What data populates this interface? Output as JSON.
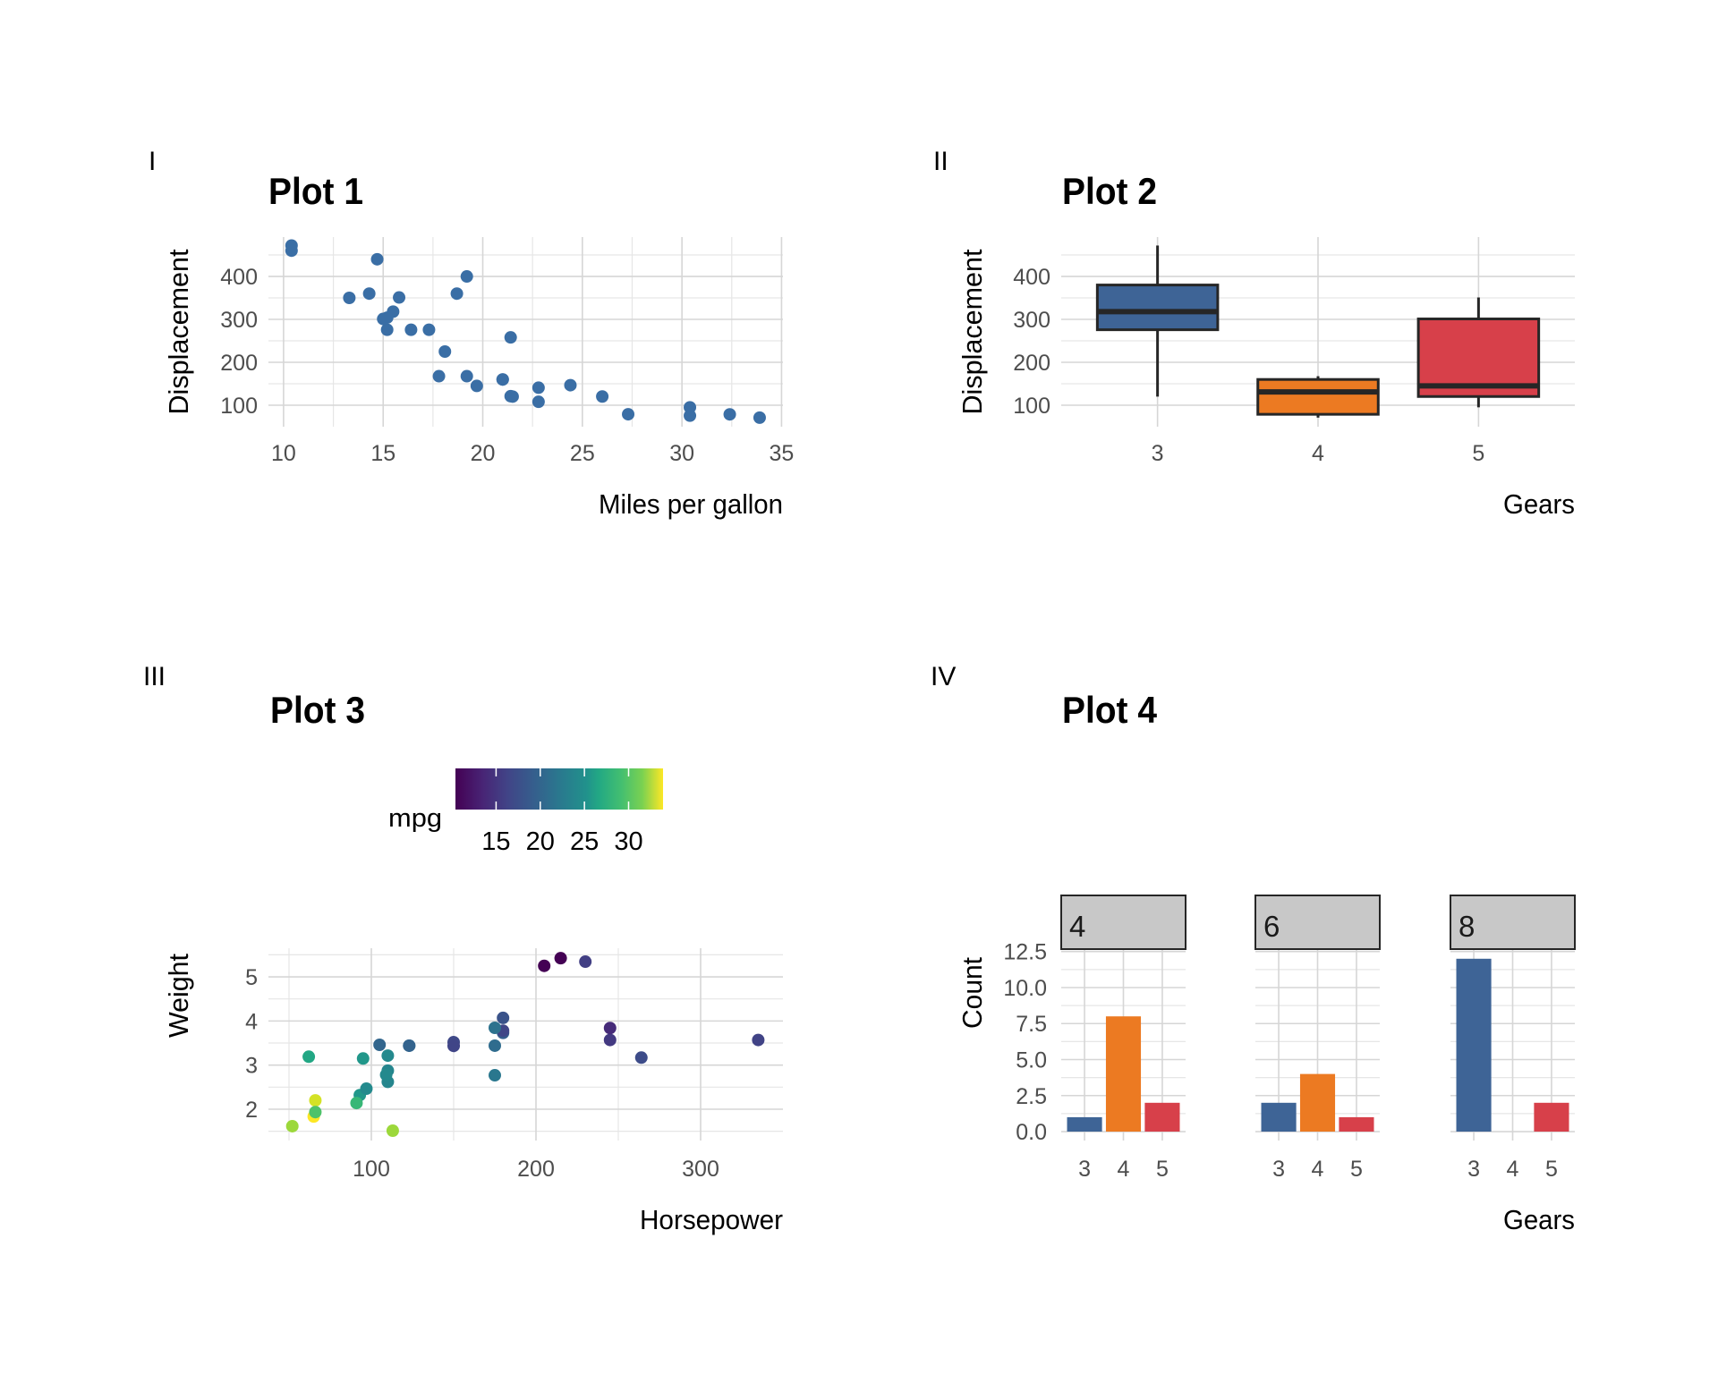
{
  "figure": {
    "panels": [
      {
        "tag": "I",
        "title": "Plot 1"
      },
      {
        "tag": "II",
        "title": "Plot 2"
      },
      {
        "tag": "III",
        "title": "Plot 3"
      },
      {
        "tag": "IV",
        "title": "Plot 4"
      }
    ]
  },
  "chart_data": [
    {
      "type": "scatter",
      "tag": "I",
      "title": "Plot 1",
      "xlabel": "Miles per gallon",
      "ylabel": "Displacement",
      "xlim": [
        9.24,
        35.07
      ],
      "ylim": [
        50,
        491.7
      ],
      "xticks": [
        10,
        15,
        20,
        25,
        30,
        35
      ],
      "yticks": [
        100,
        200,
        300,
        400
      ],
      "grid": true,
      "point_color": "#3a6ea5",
      "points": [
        {
          "x": 21.0,
          "y": 160
        },
        {
          "x": 21.0,
          "y": 160
        },
        {
          "x": 22.8,
          "y": 108
        },
        {
          "x": 21.4,
          "y": 258
        },
        {
          "x": 18.7,
          "y": 360
        },
        {
          "x": 18.1,
          "y": 225
        },
        {
          "x": 14.3,
          "y": 360
        },
        {
          "x": 24.4,
          "y": 146.7
        },
        {
          "x": 22.8,
          "y": 140.8
        },
        {
          "x": 19.2,
          "y": 167.6
        },
        {
          "x": 17.8,
          "y": 167.6
        },
        {
          "x": 16.4,
          "y": 275.8
        },
        {
          "x": 17.3,
          "y": 275.8
        },
        {
          "x": 15.2,
          "y": 275.8
        },
        {
          "x": 10.4,
          "y": 472
        },
        {
          "x": 10.4,
          "y": 460
        },
        {
          "x": 14.7,
          "y": 440
        },
        {
          "x": 32.4,
          "y": 78.7
        },
        {
          "x": 30.4,
          "y": 75.7
        },
        {
          "x": 33.9,
          "y": 71.1
        },
        {
          "x": 21.5,
          "y": 120.1
        },
        {
          "x": 15.5,
          "y": 318
        },
        {
          "x": 15.2,
          "y": 304
        },
        {
          "x": 13.3,
          "y": 350
        },
        {
          "x": 19.2,
          "y": 400
        },
        {
          "x": 27.3,
          "y": 79
        },
        {
          "x": 26.0,
          "y": 120.3
        },
        {
          "x": 30.4,
          "y": 95.1
        },
        {
          "x": 15.8,
          "y": 351
        },
        {
          "x": 19.7,
          "y": 145
        },
        {
          "x": 15.0,
          "y": 301
        },
        {
          "x": 21.4,
          "y": 121
        }
      ]
    },
    {
      "type": "box",
      "tag": "II",
      "title": "Plot 2",
      "xlabel": "Gears",
      "ylabel": "Displacement",
      "ylim": [
        50,
        491.7
      ],
      "yticks": [
        100,
        200,
        300,
        400
      ],
      "categories": [
        "3",
        "4",
        "5"
      ],
      "grid": true,
      "boxes": [
        {
          "category": "3",
          "lower": 120.1,
          "q1": 275.8,
          "median": 318,
          "q3": 380,
          "upper": 472,
          "color": "#3e6496"
        },
        {
          "category": "4",
          "lower": 71.1,
          "q1": 78.85,
          "median": 130.9,
          "q3": 160,
          "upper": 167.6,
          "color": "#ec7a22"
        },
        {
          "category": "5",
          "lower": 95.1,
          "q1": 120.3,
          "median": 145,
          "q3": 301,
          "upper": 351,
          "color": "#d7404a"
        }
      ]
    },
    {
      "type": "scatter",
      "tag": "III",
      "title": "Plot 3",
      "xlabel": "Horsepower",
      "ylabel": "Weight",
      "xlim": [
        37.5,
        350
      ],
      "ylim": [
        1.29,
        5.65
      ],
      "xticks": [
        100,
        200,
        300
      ],
      "yticks": [
        2,
        3,
        4,
        5
      ],
      "grid": true,
      "color_by": "mpg",
      "legend": {
        "title": "mpg",
        "position": "top",
        "ticks": [
          15,
          20,
          25,
          30
        ],
        "range": [
          10.4,
          33.9
        ],
        "palette": "viridis"
      },
      "points": [
        {
          "x": 110,
          "y": 2.62,
          "mpg": 21.0
        },
        {
          "x": 110,
          "y": 2.875,
          "mpg": 21.0
        },
        {
          "x": 93,
          "y": 2.32,
          "mpg": 22.8
        },
        {
          "x": 110,
          "y": 3.215,
          "mpg": 21.4
        },
        {
          "x": 175,
          "y": 3.44,
          "mpg": 18.7
        },
        {
          "x": 105,
          "y": 3.46,
          "mpg": 18.1
        },
        {
          "x": 245,
          "y": 3.57,
          "mpg": 14.3
        },
        {
          "x": 62,
          "y": 3.19,
          "mpg": 24.4
        },
        {
          "x": 95,
          "y": 3.15,
          "mpg": 22.8
        },
        {
          "x": 123,
          "y": 3.44,
          "mpg": 19.2
        },
        {
          "x": 123,
          "y": 3.44,
          "mpg": 17.8
        },
        {
          "x": 180,
          "y": 4.07,
          "mpg": 16.4
        },
        {
          "x": 180,
          "y": 3.73,
          "mpg": 17.3
        },
        {
          "x": 180,
          "y": 3.78,
          "mpg": 15.2
        },
        {
          "x": 205,
          "y": 5.25,
          "mpg": 10.4
        },
        {
          "x": 215,
          "y": 5.424,
          "mpg": 10.4
        },
        {
          "x": 230,
          "y": 5.345,
          "mpg": 14.7
        },
        {
          "x": 66,
          "y": 2.2,
          "mpg": 32.4
        },
        {
          "x": 52,
          "y": 1.615,
          "mpg": 30.4
        },
        {
          "x": 65,
          "y": 1.835,
          "mpg": 33.9
        },
        {
          "x": 97,
          "y": 2.465,
          "mpg": 21.5
        },
        {
          "x": 150,
          "y": 3.52,
          "mpg": 15.5
        },
        {
          "x": 150,
          "y": 3.435,
          "mpg": 15.2
        },
        {
          "x": 245,
          "y": 3.84,
          "mpg": 13.3
        },
        {
          "x": 175,
          "y": 3.845,
          "mpg": 19.2
        },
        {
          "x": 66,
          "y": 1.935,
          "mpg": 27.3
        },
        {
          "x": 91,
          "y": 2.14,
          "mpg": 26.0
        },
        {
          "x": 113,
          "y": 1.513,
          "mpg": 30.4
        },
        {
          "x": 264,
          "y": 3.17,
          "mpg": 15.8
        },
        {
          "x": 175,
          "y": 2.77,
          "mpg": 19.7
        },
        {
          "x": 335,
          "y": 3.57,
          "mpg": 15.0
        },
        {
          "x": 109,
          "y": 2.78,
          "mpg": 21.4
        }
      ]
    },
    {
      "type": "bar",
      "tag": "IV",
      "title": "Plot 4",
      "xlabel": "Gears",
      "ylabel": "Count",
      "facet_by": "cyl",
      "ylim": [
        -0.62,
        12.67
      ],
      "yticks": [
        0.0,
        2.5,
        5.0,
        7.5,
        10.0,
        12.5
      ],
      "ytick_labels": [
        "0.0",
        "2.5",
        "5.0",
        "7.5",
        "10.0",
        "12.5"
      ],
      "categories": [
        "3",
        "4",
        "5"
      ],
      "colors": {
        "3": "#3e6496",
        "4": "#ec7a22",
        "5": "#d7404a"
      },
      "grid": true,
      "facets": [
        {
          "label": "4",
          "values": [
            1,
            8,
            2
          ]
        },
        {
          "label": "6",
          "values": [
            2,
            4,
            1
          ]
        },
        {
          "label": "8",
          "values": [
            12,
            0,
            2
          ]
        }
      ]
    }
  ]
}
